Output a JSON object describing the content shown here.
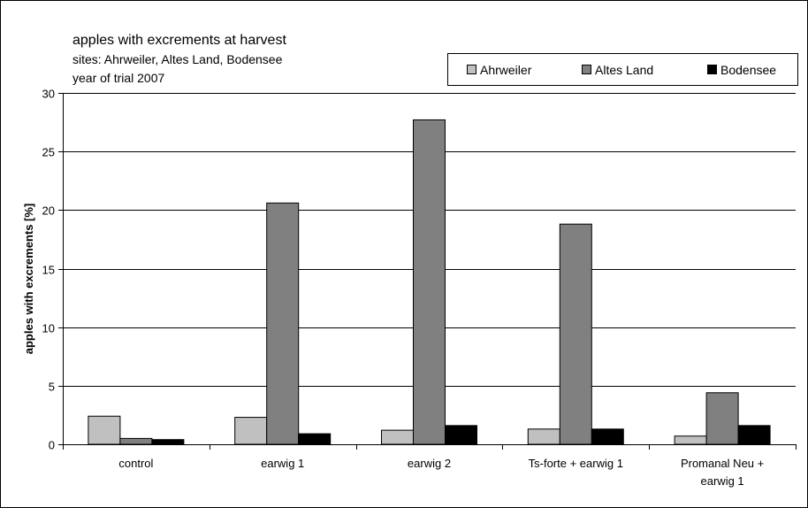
{
  "chart_data": {
    "type": "bar",
    "title": "apples with excrements at harvest",
    "subtitle": [
      "sites: Ahrweiler, Altes Land, Bodensee",
      "year of trial 2007"
    ],
    "xlabel": "",
    "ylabel": "apples with excrements [%]",
    "ylim": [
      0,
      30
    ],
    "yticks": [
      0,
      5,
      10,
      15,
      20,
      25,
      30
    ],
    "grid": true,
    "legend_position": "top-right",
    "categories": [
      [
        "control"
      ],
      [
        "earwig 1"
      ],
      [
        "earwig 2"
      ],
      [
        "Ts-forte + earwig 1"
      ],
      [
        "Promanal Neu +",
        "earwig 1"
      ]
    ],
    "series": [
      {
        "name": "Ahrweiler",
        "color": "#c0c0c0",
        "values": [
          2.4,
          2.3,
          1.2,
          1.3,
          0.7
        ]
      },
      {
        "name": "Altes Land",
        "color": "#808080",
        "values": [
          0.5,
          20.6,
          27.7,
          18.8,
          4.4
        ]
      },
      {
        "name": "Bodensee",
        "color": "#000000",
        "values": [
          0.4,
          0.9,
          1.6,
          1.3,
          1.6
        ]
      }
    ]
  }
}
